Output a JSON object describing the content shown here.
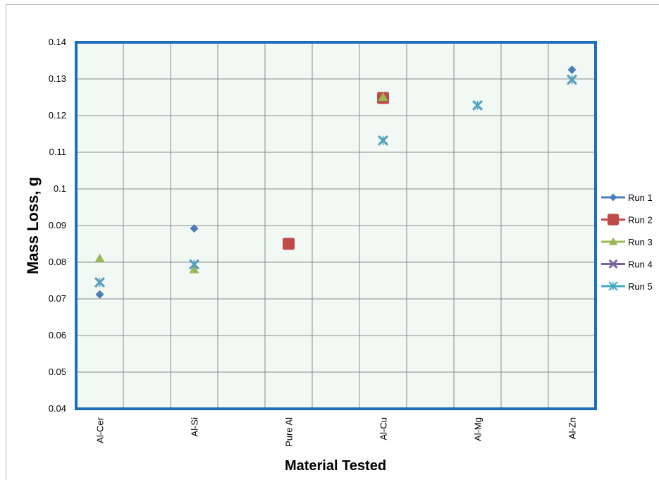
{
  "chart_data": {
    "type": "scatter",
    "title": "",
    "xlabel": "Material Tested",
    "ylabel": "Mass  Loss, g",
    "categories": [
      "Al-Cer",
      "Al-Si",
      "Pure Al",
      "Al-Cu",
      "Al-Mg",
      "Al-Zn"
    ],
    "ylim": [
      0.04,
      0.14
    ],
    "yticks": [
      "0.04",
      "0.05",
      "0.06",
      "0.07",
      "0.08",
      "0.09",
      "0.1",
      "0.11",
      "0.12",
      "0.13",
      "0.14"
    ],
    "grid": true,
    "legend_position": "right",
    "series": [
      {
        "name": "Run 1",
        "marker": "diamond",
        "color": "#4a7ebb",
        "values": [
          0.0712,
          0.0892,
          null,
          null,
          null,
          0.1325
        ]
      },
      {
        "name": "Run 2",
        "marker": "square",
        "color": "#be4b48",
        "values": [
          null,
          null,
          0.085,
          0.1248,
          null,
          null
        ]
      },
      {
        "name": "Run 3",
        "marker": "triangle",
        "color": "#98b954",
        "values": [
          0.081,
          0.078,
          null,
          0.125,
          null,
          null
        ]
      },
      {
        "name": "Run 4",
        "marker": "x",
        "color": "#7d60a0",
        "values": [
          0.0745,
          0.0794,
          null,
          0.1132,
          0.1228,
          0.1298
        ]
      },
      {
        "name": "Run 5",
        "marker": "star",
        "color": "#46aac5",
        "values": [
          0.0745,
          0.0794,
          null,
          0.1132,
          0.1228,
          0.1298
        ]
      }
    ]
  }
}
